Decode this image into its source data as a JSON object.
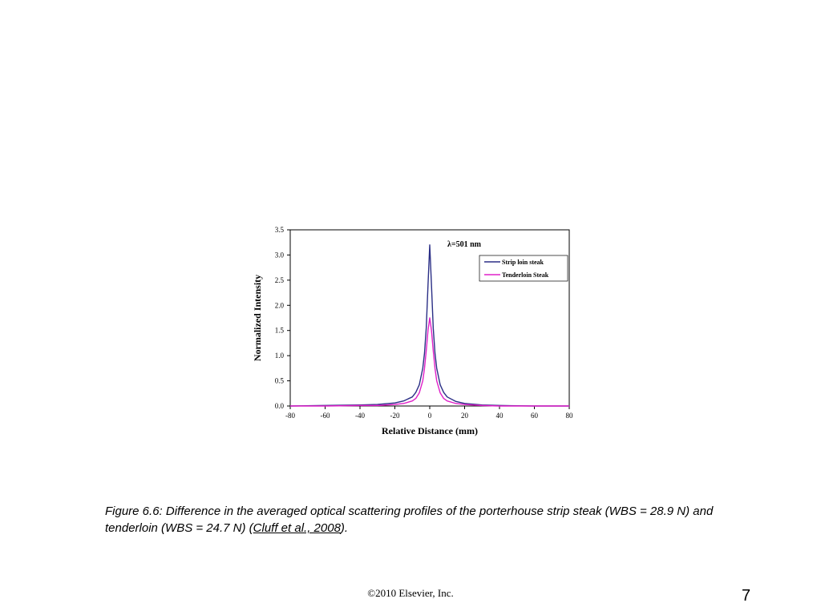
{
  "chart_data": {
    "type": "line",
    "annotation": "λ=501 nm",
    "xlabel": "Relative Distance (mm)",
    "ylabel": "Normalized Intensity",
    "xlim": [
      -80,
      80
    ],
    "ylim": [
      0,
      3.5
    ],
    "xticks": [
      -80,
      -60,
      -40,
      -20,
      0,
      20,
      40,
      60,
      80
    ],
    "yticks": [
      "0.0",
      "0.5",
      "1.0",
      "1.5",
      "2.0",
      "2.5",
      "3.0",
      "3.5"
    ],
    "legend_position": "top-right",
    "grid": false,
    "series": [
      {
        "name": "Strip loin steak",
        "color": "#2b2f86",
        "x": [
          -80,
          -60,
          -40,
          -30,
          -20,
          -15,
          -10,
          -8,
          -6,
          -4,
          -3,
          -2,
          -1,
          0,
          1,
          2,
          3,
          4,
          6,
          8,
          10,
          15,
          20,
          30,
          40,
          60,
          80
        ],
        "y": [
          0.0,
          0.01,
          0.02,
          0.03,
          0.06,
          0.1,
          0.18,
          0.27,
          0.42,
          0.75,
          1.05,
          1.55,
          2.4,
          3.2,
          2.4,
          1.55,
          1.05,
          0.75,
          0.42,
          0.27,
          0.18,
          0.09,
          0.05,
          0.02,
          0.01,
          0.0,
          0.0
        ]
      },
      {
        "name": "Tenderloin Steak",
        "color": "#e020c8",
        "x": [
          -80,
          -60,
          -40,
          -30,
          -20,
          -15,
          -10,
          -8,
          -6,
          -4,
          -3,
          -2,
          -1,
          0,
          1,
          2,
          3,
          4,
          6,
          8,
          10,
          15,
          20,
          30,
          40,
          60,
          80
        ],
        "y": [
          0.0,
          0.0,
          0.01,
          0.01,
          0.03,
          0.05,
          0.1,
          0.15,
          0.26,
          0.5,
          0.75,
          1.1,
          1.5,
          1.75,
          1.5,
          1.1,
          0.75,
          0.5,
          0.26,
          0.15,
          0.1,
          0.05,
          0.03,
          0.01,
          0.0,
          0.0,
          0.0
        ]
      }
    ]
  },
  "caption": {
    "text_before": "Figure 6.6: Difference in the averaged optical scattering profiles of the porterhouse strip steak (WBS = 28.9 N) and tenderloin (WBS = 24.7 N) (",
    "reference": "Cluff et al., 2008",
    "text_after": ")."
  },
  "footer": {
    "copyright": "©2010 Elsevier, Inc.",
    "page_number": "7"
  }
}
